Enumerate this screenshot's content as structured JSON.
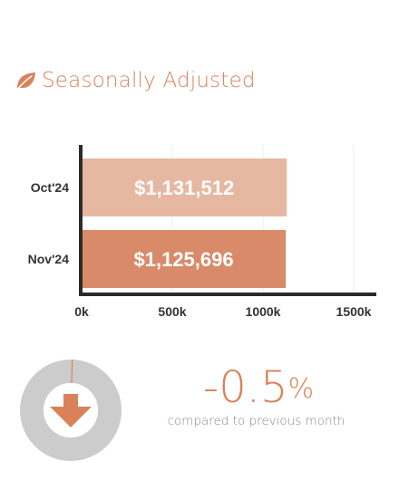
{
  "header": {
    "title": "Seasonally Adjusted",
    "icon": "leaf-icon",
    "color": "#d9825a"
  },
  "chart_data": {
    "type": "bar",
    "orientation": "horizontal",
    "categories": [
      "Oct'24",
      "Nov'24"
    ],
    "values": [
      1131512,
      1125696
    ],
    "value_labels": [
      "$1,131,512",
      "$1,125,696"
    ],
    "bar_colors": [
      "#e6b8a2",
      "#d98a68"
    ],
    "xlim": [
      0,
      1500000
    ],
    "xticks": [
      0,
      500000,
      1000000,
      1500000
    ],
    "xtick_labels": [
      "0k",
      "500k",
      "1000k",
      "1500k"
    ],
    "grid": true
  },
  "change": {
    "value_text": "-0.5",
    "symbol": "%",
    "caption": "compared to previous month",
    "direction": "down",
    "fraction": 0.005,
    "arrow_color": "#d9825a",
    "ring_color": "#cccccc"
  }
}
